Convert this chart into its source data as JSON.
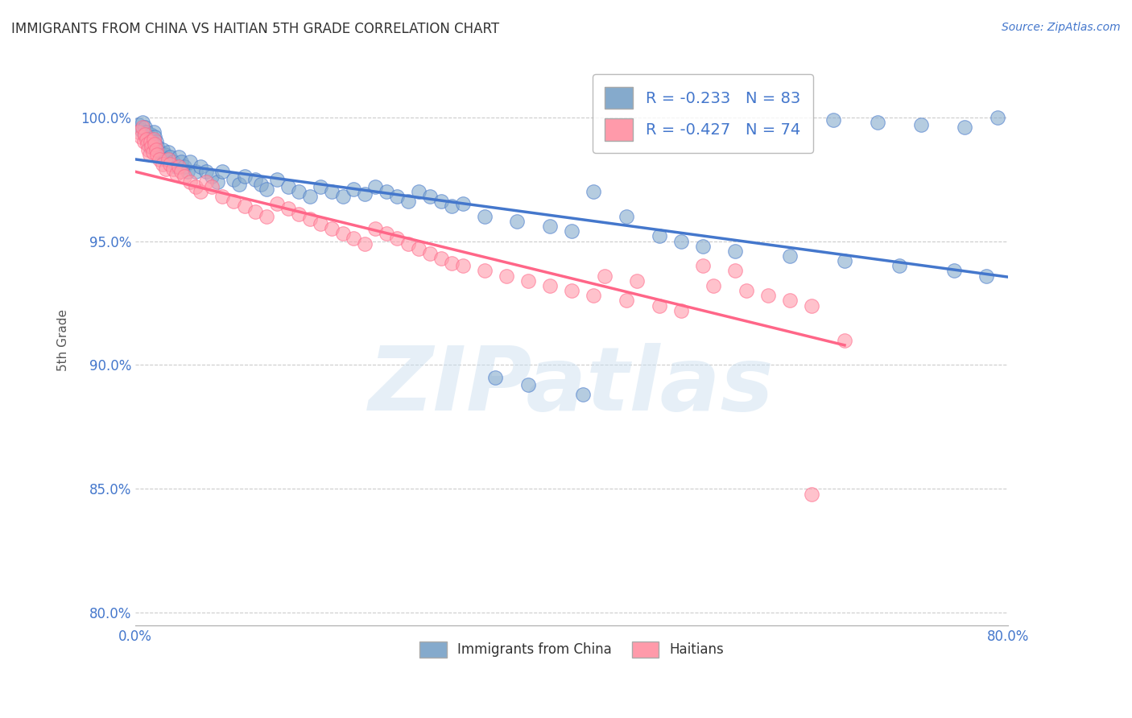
{
  "title": "IMMIGRANTS FROM CHINA VS HAITIAN 5TH GRADE CORRELATION CHART",
  "source": "Source: ZipAtlas.com",
  "ylabel": "5th Grade",
  "watermark": "ZIPatlas",
  "legend_blue_label": "R = -0.233   N = 83",
  "legend_pink_label": "R = -0.427   N = 74",
  "legend_bottom_blue": "Immigrants from China",
  "legend_bottom_pink": "Haitians",
  "blue_color": "#85AACC",
  "pink_color": "#FF9AAA",
  "blue_line_color": "#4477CC",
  "pink_line_color": "#FF6688",
  "text_color": "#4477CC",
  "ylabel_color": "#555555",
  "title_color": "#333333",
  "background_color": "#FFFFFF",
  "grid_color": "#CCCCCC",
  "xlim": [
    0.0,
    0.8
  ],
  "ylim": [
    0.795,
    1.025
  ],
  "yticks": [
    0.8,
    0.85,
    0.9,
    0.95,
    1.0
  ],
  "ytick_labels": [
    "80.0%",
    "85.0%",
    "90.0%",
    "95.0%",
    "100.0%"
  ],
  "xticks": [
    0.0,
    0.1,
    0.2,
    0.3,
    0.4,
    0.5,
    0.6,
    0.7,
    0.8
  ],
  "blue_scatter_x": [
    0.003,
    0.005,
    0.007,
    0.008,
    0.009,
    0.01,
    0.011,
    0.012,
    0.013,
    0.014,
    0.015,
    0.016,
    0.017,
    0.018,
    0.019,
    0.02,
    0.022,
    0.024,
    0.025,
    0.027,
    0.028,
    0.03,
    0.032,
    0.035,
    0.038,
    0.04,
    0.042,
    0.045,
    0.048,
    0.05,
    0.055,
    0.06,
    0.065,
    0.07,
    0.075,
    0.08,
    0.09,
    0.095,
    0.1,
    0.11,
    0.115,
    0.12,
    0.13,
    0.14,
    0.15,
    0.16,
    0.17,
    0.18,
    0.19,
    0.2,
    0.21,
    0.22,
    0.23,
    0.24,
    0.25,
    0.26,
    0.27,
    0.28,
    0.29,
    0.3,
    0.32,
    0.35,
    0.38,
    0.4,
    0.42,
    0.45,
    0.48,
    0.5,
    0.52,
    0.55,
    0.6,
    0.65,
    0.7,
    0.75,
    0.78,
    0.79,
    0.64,
    0.68,
    0.72,
    0.76,
    0.33,
    0.36,
    0.41
  ],
  "blue_scatter_y": [
    0.997,
    0.995,
    0.998,
    0.993,
    0.996,
    0.994,
    0.992,
    0.99,
    0.988,
    0.993,
    0.991,
    0.989,
    0.994,
    0.992,
    0.99,
    0.988,
    0.986,
    0.984,
    0.987,
    0.985,
    0.983,
    0.986,
    0.984,
    0.982,
    0.98,
    0.984,
    0.982,
    0.98,
    0.978,
    0.982,
    0.978,
    0.98,
    0.978,
    0.976,
    0.974,
    0.978,
    0.975,
    0.973,
    0.976,
    0.975,
    0.973,
    0.971,
    0.975,
    0.972,
    0.97,
    0.968,
    0.972,
    0.97,
    0.968,
    0.971,
    0.969,
    0.972,
    0.97,
    0.968,
    0.966,
    0.97,
    0.968,
    0.966,
    0.964,
    0.965,
    0.96,
    0.958,
    0.956,
    0.954,
    0.97,
    0.96,
    0.952,
    0.95,
    0.948,
    0.946,
    0.944,
    0.942,
    0.94,
    0.938,
    0.936,
    1.0,
    0.999,
    0.998,
    0.997,
    0.996,
    0.895,
    0.892,
    0.888
  ],
  "pink_scatter_x": [
    0.003,
    0.005,
    0.007,
    0.008,
    0.009,
    0.01,
    0.011,
    0.012,
    0.013,
    0.014,
    0.015,
    0.016,
    0.017,
    0.018,
    0.019,
    0.02,
    0.022,
    0.025,
    0.028,
    0.03,
    0.032,
    0.035,
    0.038,
    0.04,
    0.042,
    0.045,
    0.05,
    0.055,
    0.06,
    0.065,
    0.07,
    0.08,
    0.09,
    0.1,
    0.11,
    0.12,
    0.13,
    0.14,
    0.15,
    0.16,
    0.17,
    0.18,
    0.19,
    0.2,
    0.21,
    0.22,
    0.23,
    0.24,
    0.25,
    0.26,
    0.27,
    0.28,
    0.29,
    0.3,
    0.32,
    0.34,
    0.36,
    0.38,
    0.4,
    0.42,
    0.45,
    0.48,
    0.5,
    0.52,
    0.55,
    0.43,
    0.46,
    0.53,
    0.56,
    0.58,
    0.6,
    0.62,
    0.65,
    0.62
  ],
  "pink_scatter_y": [
    0.994,
    0.992,
    0.996,
    0.99,
    0.993,
    0.991,
    0.989,
    0.987,
    0.985,
    0.99,
    0.988,
    0.986,
    0.991,
    0.989,
    0.987,
    0.985,
    0.983,
    0.981,
    0.979,
    0.983,
    0.981,
    0.979,
    0.977,
    0.98,
    0.978,
    0.976,
    0.974,
    0.972,
    0.97,
    0.974,
    0.972,
    0.968,
    0.966,
    0.964,
    0.962,
    0.96,
    0.965,
    0.963,
    0.961,
    0.959,
    0.957,
    0.955,
    0.953,
    0.951,
    0.949,
    0.955,
    0.953,
    0.951,
    0.949,
    0.947,
    0.945,
    0.943,
    0.941,
    0.94,
    0.938,
    0.936,
    0.934,
    0.932,
    0.93,
    0.928,
    0.926,
    0.924,
    0.922,
    0.94,
    0.938,
    0.936,
    0.934,
    0.932,
    0.93,
    0.928,
    0.926,
    0.924,
    0.91,
    0.848
  ],
  "blue_trend_x": [
    0.0,
    0.8
  ],
  "blue_trend_y": [
    0.983,
    0.9355
  ],
  "pink_trend_x": [
    0.0,
    0.65
  ],
  "pink_trend_y": [
    0.978,
    0.908
  ]
}
